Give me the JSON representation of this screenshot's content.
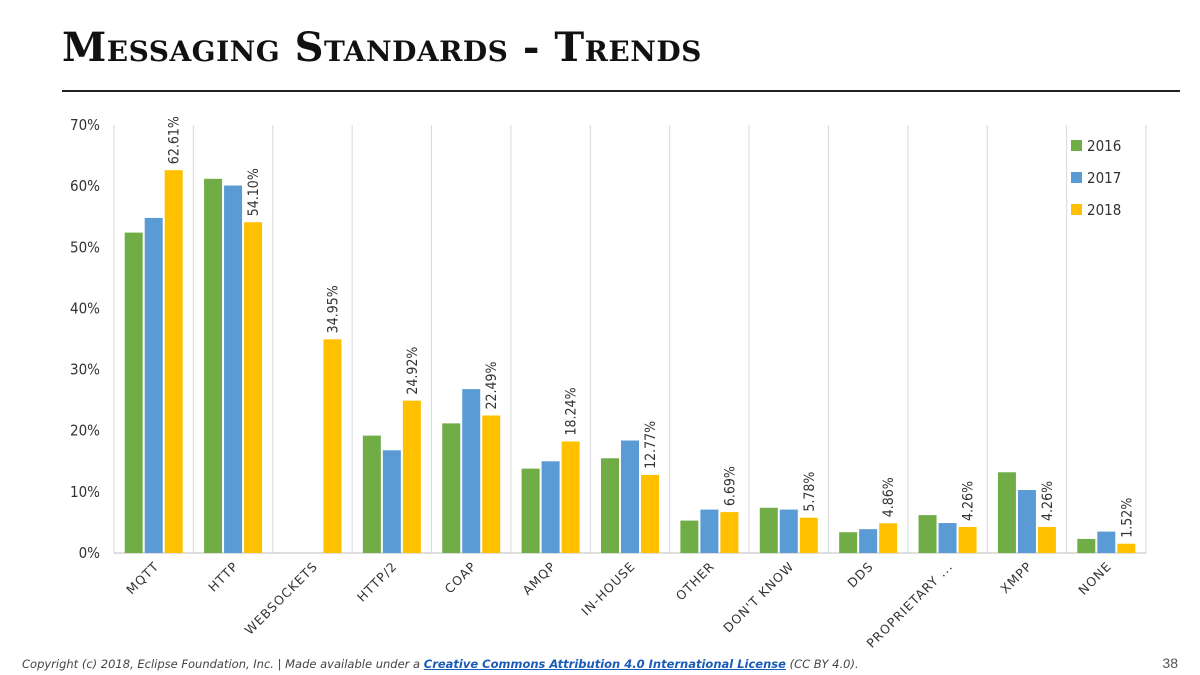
{
  "slide": {
    "title": "Messaging Standards - Trends",
    "page_number": "38"
  },
  "footer": {
    "prefix": "Copyright (c) 2018, Eclipse Foundation, Inc. | Made available under a ",
    "link_text": "Creative Commons Attribution 4.0 International License",
    "suffix": " (CC BY 4.0)."
  },
  "colors": {
    "series_2016": "#70ad47",
    "series_2017": "#5b9bd5",
    "series_2018": "#ffc000",
    "gridline": "#d9d9d9",
    "text": "#333333"
  },
  "chart_data": {
    "type": "bar",
    "title": "",
    "xlabel": "",
    "ylabel": "",
    "ylim": [
      0,
      70
    ],
    "yticks": [
      "0%",
      "10%",
      "20%",
      "30%",
      "40%",
      "50%",
      "60%",
      "70%"
    ],
    "grid": "vertical-category-separators",
    "legend": "top-right",
    "categories": [
      "MQTT",
      "HTTP",
      "WEBSOCKETS",
      "HTTP/2",
      "COAP",
      "AMQP",
      "IN-HOUSE",
      "OTHER",
      "DON'T KNOW",
      "DDS",
      "PROPRIETARY ...",
      "XMPP",
      "NONE"
    ],
    "series": [
      {
        "name": "2016",
        "values": [
          52.4,
          61.2,
          0,
          19.2,
          21.2,
          13.8,
          15.5,
          5.3,
          7.4,
          3.4,
          6.2,
          13.2,
          2.3
        ]
      },
      {
        "name": "2017",
        "values": [
          54.8,
          60.1,
          0,
          16.8,
          26.8,
          15.0,
          18.4,
          7.1,
          7.1,
          3.9,
          4.9,
          10.3,
          3.5
        ]
      },
      {
        "name": "2018",
        "values": [
          62.61,
          54.1,
          34.95,
          24.92,
          22.49,
          18.24,
          12.77,
          6.69,
          5.78,
          4.86,
          4.26,
          4.26,
          1.52
        ],
        "labels": [
          "62.61%",
          "54.10%",
          "34.95%",
          "24.92%",
          "22.49%",
          "18.24%",
          "12.77%",
          "6.69%",
          "5.78%",
          "4.86%",
          "4.26%",
          "4.26%",
          "1.52%"
        ]
      }
    ]
  }
}
